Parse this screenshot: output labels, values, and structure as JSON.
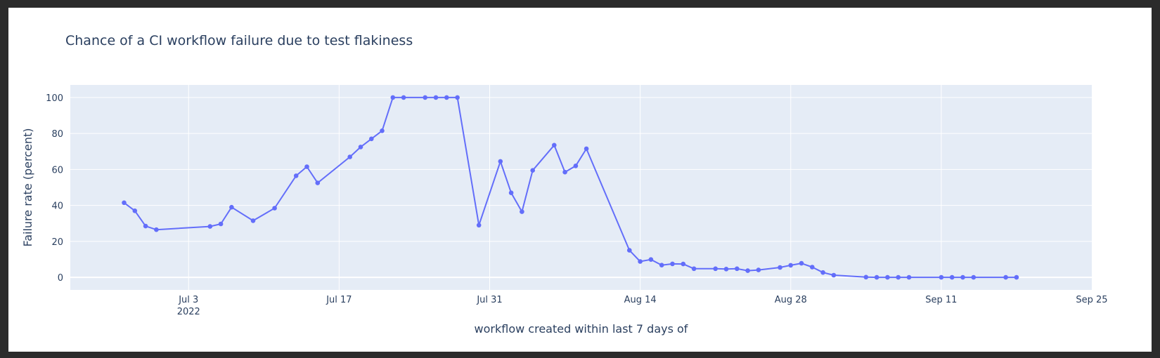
{
  "chart_data": {
    "type": "line",
    "title": "Chance of a CI workflow failure due to test flakiness",
    "xlabel": "workflow created within last 7 days of",
    "ylabel": "Failure rate (percent)",
    "x_type": "date",
    "x_range": [
      "2022-06-22",
      "2022-09-25"
    ],
    "y_range": [
      -7,
      107
    ],
    "x_ticks": [
      {
        "date": "2022-07-03",
        "label": "Jul 3",
        "sublabel": "2022"
      },
      {
        "date": "2022-07-17",
        "label": "Jul 17"
      },
      {
        "date": "2022-07-31",
        "label": "Jul 31"
      },
      {
        "date": "2022-08-14",
        "label": "Aug 14"
      },
      {
        "date": "2022-08-28",
        "label": "Aug 28"
      },
      {
        "date": "2022-09-11",
        "label": "Sep 11"
      },
      {
        "date": "2022-09-25",
        "label": "Sep 25"
      }
    ],
    "y_ticks": [
      0,
      20,
      40,
      60,
      80,
      100
    ],
    "grid": true,
    "legend": "none",
    "colors": {
      "line": "#636efa",
      "plot_bg": "#e5ecf6",
      "grid": "#ffffff",
      "text": "#2a3f5f"
    },
    "series": [
      {
        "x": [
          "2022-06-27",
          "2022-06-28",
          "2022-06-29",
          "2022-06-30",
          "2022-07-05",
          "2022-07-06",
          "2022-07-07",
          "2022-07-09",
          "2022-07-11",
          "2022-07-13",
          "2022-07-14",
          "2022-07-15",
          "2022-07-18",
          "2022-07-19",
          "2022-07-20",
          "2022-07-21",
          "2022-07-22",
          "2022-07-23",
          "2022-07-25",
          "2022-07-26",
          "2022-07-27",
          "2022-07-28",
          "2022-07-30",
          "2022-08-01",
          "2022-08-02",
          "2022-08-03",
          "2022-08-04",
          "2022-08-06",
          "2022-08-07",
          "2022-08-08",
          "2022-08-09",
          "2022-08-13",
          "2022-08-14",
          "2022-08-15",
          "2022-08-16",
          "2022-08-17",
          "2022-08-18",
          "2022-08-19",
          "2022-08-21",
          "2022-08-22",
          "2022-08-23",
          "2022-08-24",
          "2022-08-25",
          "2022-08-27",
          "2022-08-28",
          "2022-08-29",
          "2022-08-30",
          "2022-08-31",
          "2022-09-01",
          "2022-09-04",
          "2022-09-05",
          "2022-09-06",
          "2022-09-07",
          "2022-09-08",
          "2022-09-11",
          "2022-09-12",
          "2022-09-13",
          "2022-09-14",
          "2022-09-17",
          "2022-09-18"
        ],
        "y": [
          41.5,
          37,
          28.5,
          26.5,
          28.3,
          29.7,
          39,
          31.5,
          38.5,
          56.5,
          61.5,
          52.5,
          67,
          72.5,
          77,
          81.5,
          100,
          100,
          100,
          100,
          100,
          100,
          29,
          64.5,
          47,
          36.5,
          59.5,
          73.5,
          58.5,
          62,
          71.5,
          15,
          8.8,
          9.9,
          6.8,
          7.5,
          7.4,
          4.8,
          4.8,
          4.6,
          4.8,
          3.7,
          4.1,
          5.5,
          6.7,
          7.8,
          5.7,
          2.7,
          1.2,
          0.1,
          0,
          0,
          0,
          0,
          0,
          0,
          0,
          0,
          0,
          0
        ]
      }
    ]
  }
}
